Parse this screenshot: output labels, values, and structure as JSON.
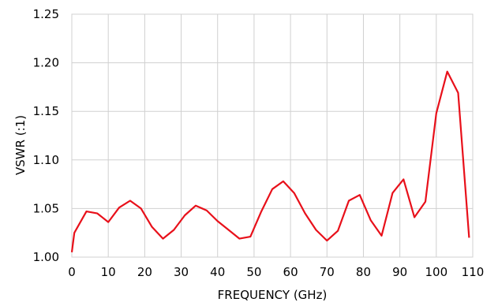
{
  "chart_data": {
    "type": "line",
    "title": "",
    "xlabel": "FREQUENCY (GHz)",
    "ylabel": "VSWR (:1)",
    "xlim": [
      0,
      110
    ],
    "ylim": [
      1.0,
      1.25
    ],
    "x_ticks": [
      "0",
      "10",
      "20",
      "30",
      "40",
      "50",
      "60",
      "70",
      "80",
      "90",
      "100",
      "110"
    ],
    "y_ticks": [
      "1.00",
      "1.05",
      "1.10",
      "1.15",
      "1.20",
      "1.25"
    ],
    "grid": true,
    "legend": false,
    "colors": {
      "series": "#e8101a",
      "grid": "#d0d0d0"
    },
    "series": [
      {
        "x": [
          0,
          0.7,
          4,
          7,
          10,
          13,
          16,
          19,
          22,
          25,
          28,
          31,
          34,
          37,
          40,
          43,
          46,
          49,
          52,
          55,
          58,
          61,
          64,
          67,
          70,
          73,
          76,
          79,
          82,
          85,
          88,
          91,
          94,
          97,
          100,
          103,
          106,
          109
        ],
        "y": [
          1.005,
          1.025,
          1.047,
          1.045,
          1.036,
          1.051,
          1.058,
          1.05,
          1.031,
          1.019,
          1.028,
          1.043,
          1.053,
          1.048,
          1.037,
          1.028,
          1.019,
          1.021,
          1.047,
          1.07,
          1.078,
          1.066,
          1.045,
          1.028,
          1.017,
          1.027,
          1.058,
          1.064,
          1.038,
          1.022,
          1.066,
          1.08,
          1.041,
          1.057,
          1.148,
          1.191,
          1.169,
          1.02
        ]
      }
    ]
  }
}
